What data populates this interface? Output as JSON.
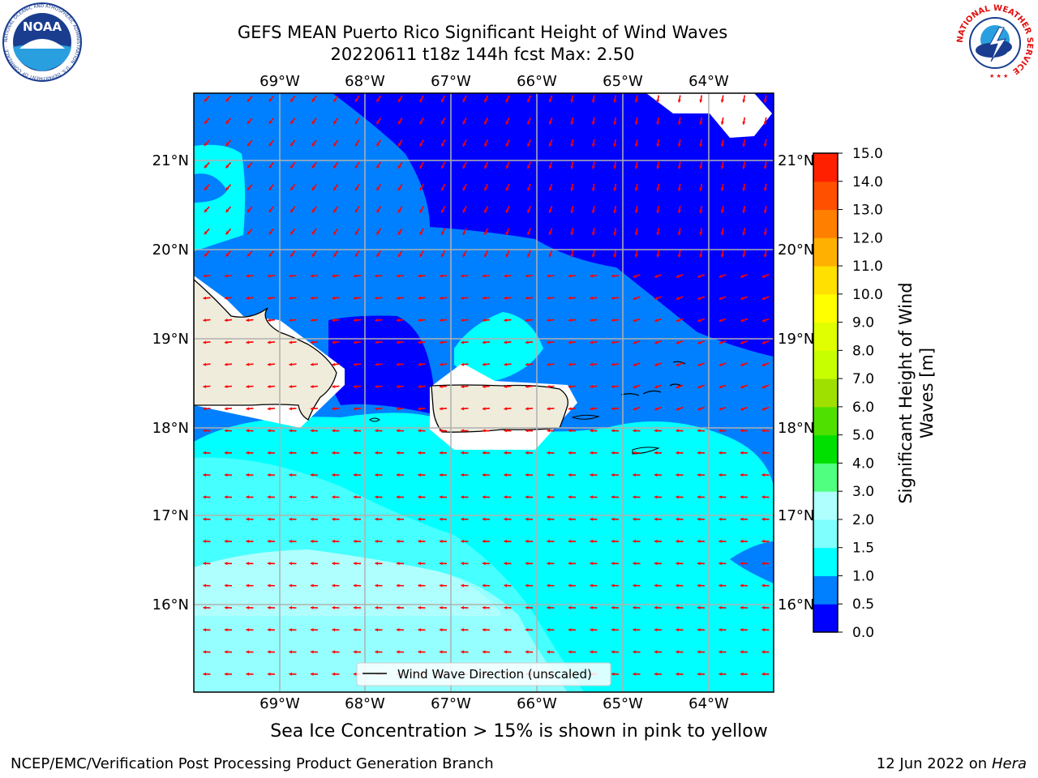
{
  "title": {
    "line1": "GEFS MEAN Puerto Rico Significant Height of Wind Waves",
    "line2": "20220611 t18z 144h fcst   Max: 2.50"
  },
  "map": {
    "lon_ticks": [
      "69°W",
      "68°W",
      "67°W",
      "66°W",
      "65°W",
      "64°W"
    ],
    "lat_ticks": [
      "21°N",
      "20°N",
      "19°N",
      "18°N",
      "17°N",
      "16°N"
    ],
    "legend_label": "Wind Wave Direction (unscaled)",
    "arrow_color": "#ff0000",
    "land_color": "#efecdc",
    "ice_note": "Sea Ice Concentration > 15% is shown in pink to yellow"
  },
  "colorbar": {
    "label": "Significant Height of Wind Waves [m]",
    "ticks": [
      "15.0",
      "14.0",
      "13.0",
      "12.0",
      "11.0",
      "10.0",
      "9.0",
      "8.0",
      "7.0",
      "6.0",
      "5.0",
      "4.0",
      "3.0",
      "2.0",
      "1.5",
      "1.0",
      "0.5",
      "0.0"
    ],
    "colors": [
      "#0000ff",
      "#0080ff",
      "#00ffff",
      "#80ffff",
      "#b0ffff",
      "#50ff80",
      "#00e000",
      "#50e000",
      "#a0e000",
      "#c8ff00",
      "#e0ff00",
      "#ffff00",
      "#ffe000",
      "#ffb000",
      "#ff8000",
      "#ff5000",
      "#ff2000",
      "#ff0000"
    ]
  },
  "footer": {
    "left": "NCEP/EMC/Verification Post Processing Product Generation Branch",
    "date": "12 Jun 2022 on",
    "host": "Hera"
  },
  "logos": {
    "noaa_text": "NOAA",
    "noaa_ring": "NATIONAL OCEANIC AND ATMOSPHERIC ADMINISTRATION · U.S. DEPARTMENT OF COMMERCE ·",
    "nws_ring": "NATIONAL WEATHER SERVICE"
  }
}
